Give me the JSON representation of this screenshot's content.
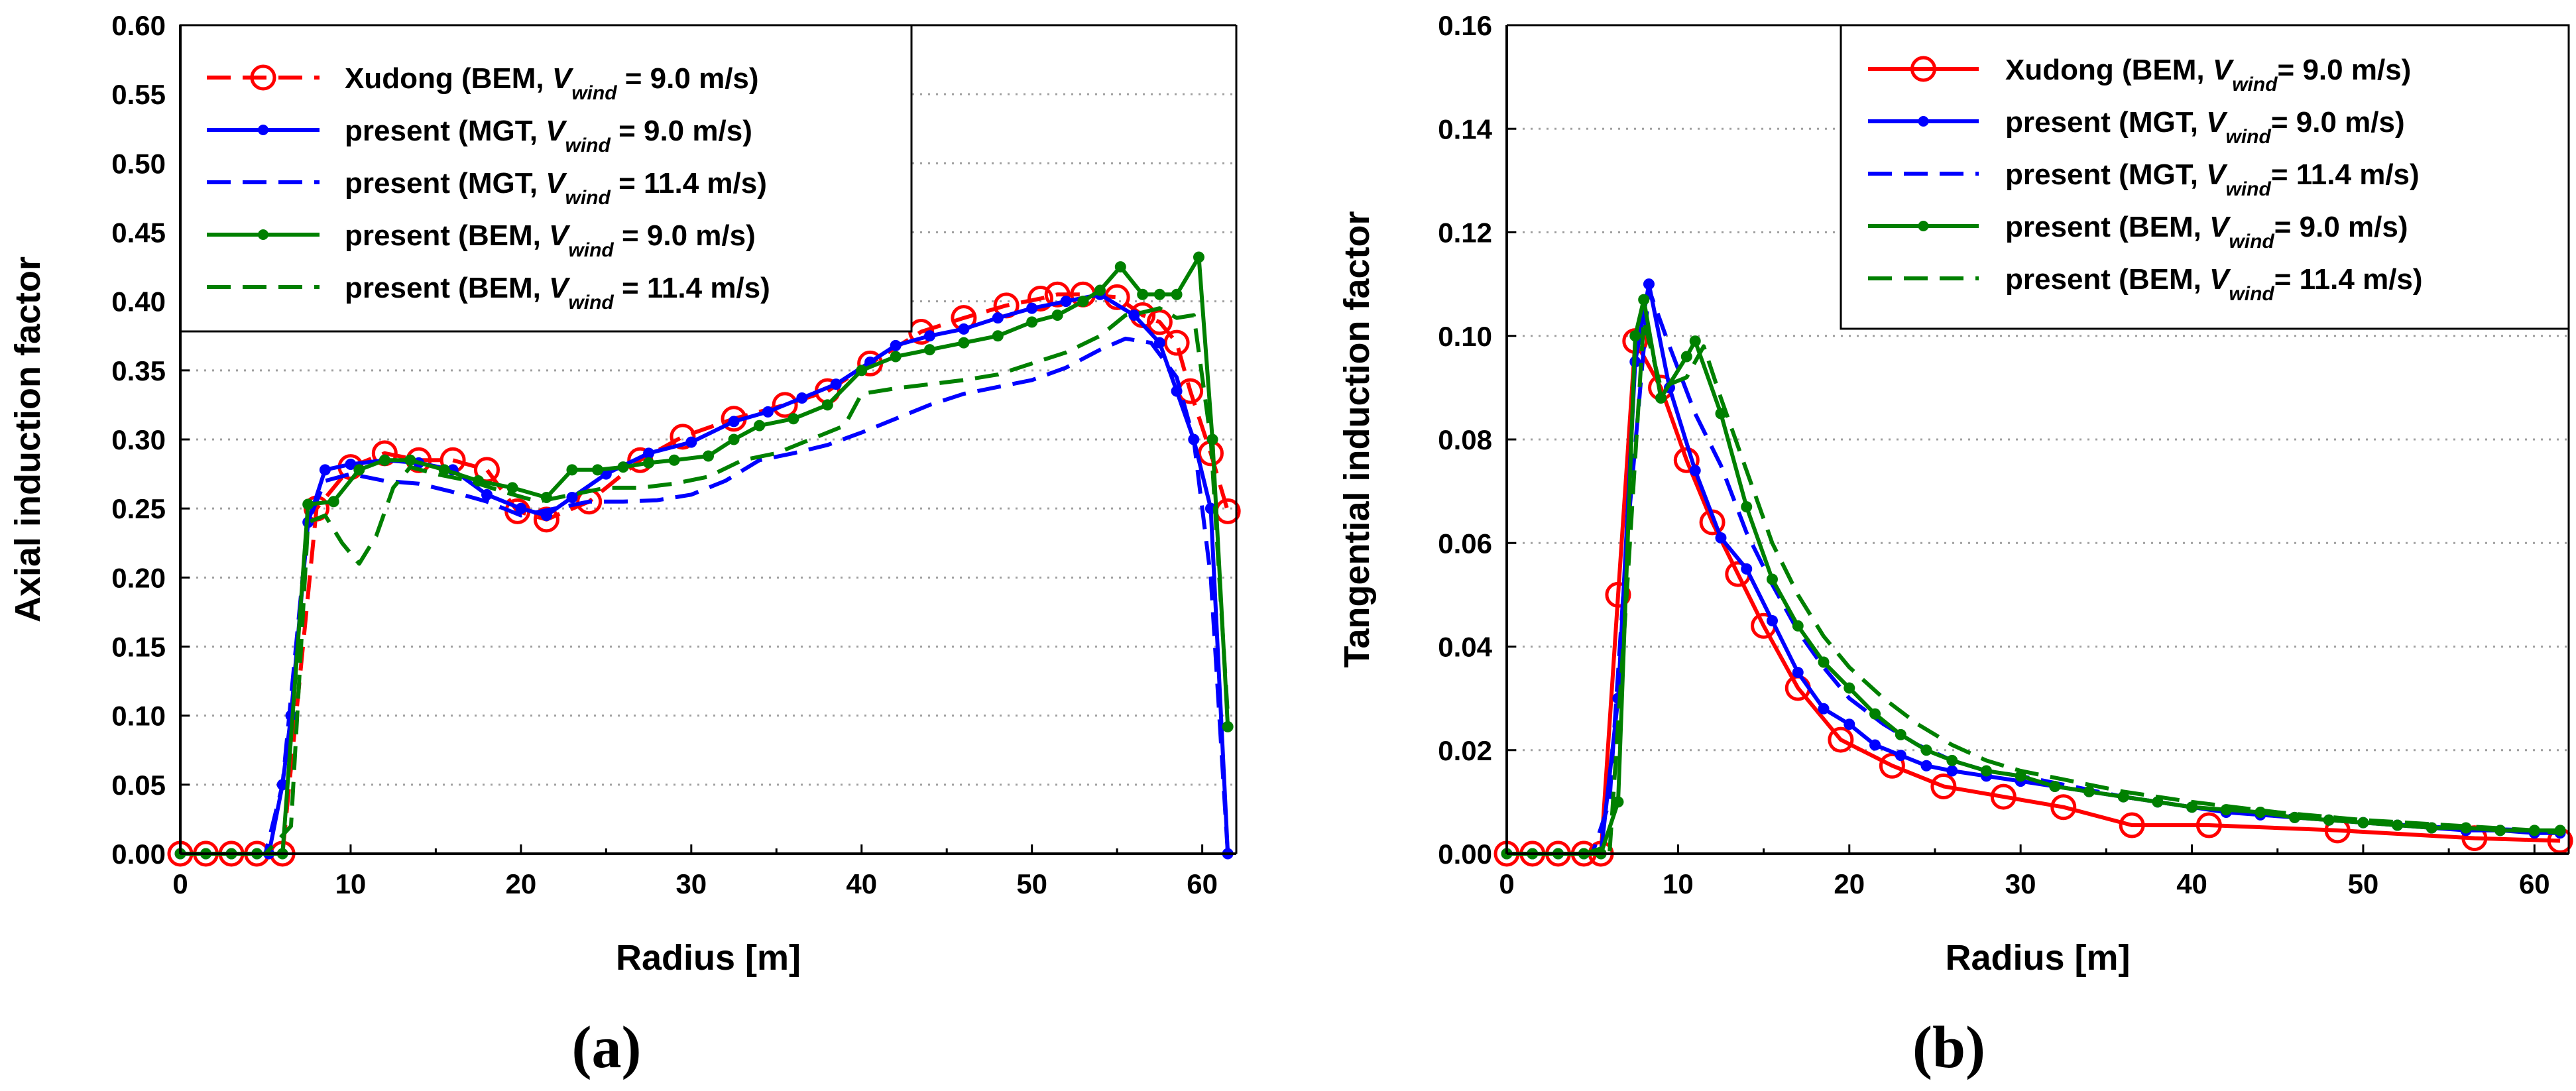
{
  "chart_data": [
    {
      "type": "line",
      "panel_label": "(a)",
      "xlabel": "Radius [m]",
      "ylabel": "Axial induction factor",
      "xlim": [
        0,
        62
      ],
      "ylim": [
        0,
        0.6
      ],
      "xticks": [
        "0",
        "10",
        "20",
        "30",
        "40",
        "50",
        "60"
      ],
      "yticks": [
        "0.00",
        "0.05",
        "0.10",
        "0.15",
        "0.20",
        "0.25",
        "0.30",
        "0.35",
        "0.40",
        "0.45",
        "0.50",
        "0.55",
        "0.60"
      ],
      "grid": "horizontal dotted",
      "legend_position": "top-left",
      "series": [
        {
          "name": "Xudong (BEM, V_wind = 9.0 m/s)",
          "legend_main": "Xudong (BEM, ",
          "legend_v": "V",
          "legend_sub": "wind",
          "legend_tail": " = 9.0 m/s)",
          "color": "#ff0000",
          "style": "dash",
          "marker": "open-circle",
          "x": [
            0,
            1.5,
            3,
            4.5,
            6,
            8,
            10,
            12,
            14,
            16,
            18,
            19.8,
            21.5,
            24,
            27,
            29.5,
            32.5,
            35.5,
            38,
            40.5,
            43.5,
            46,
            48.5,
            50.5,
            51.5,
            53,
            55,
            56.5,
            57.5,
            58.5,
            59.3,
            60.5,
            61.5
          ],
          "y": [
            0,
            0,
            0,
            0,
            0,
            0.25,
            0.28,
            0.29,
            0.285,
            0.285,
            0.278,
            0.248,
            0.242,
            0.255,
            0.285,
            0.302,
            0.315,
            0.325,
            0.335,
            0.355,
            0.378,
            0.388,
            0.397,
            0.402,
            0.405,
            0.405,
            0.403,
            0.39,
            0.385,
            0.37,
            0.335,
            0.29,
            0.248
          ]
        },
        {
          "name": "present (MGT, V_wind = 9.0 m/s)",
          "legend_main": "present (MGT, ",
          "legend_v": "V",
          "legend_sub": "wind",
          "legend_tail": " = 9.0 m/s)",
          "color": "#0000ff",
          "style": "solid",
          "marker": "dot",
          "x": [
            0,
            1.5,
            3,
            4.5,
            5.2,
            6,
            6.5,
            7.5,
            8.5,
            10,
            12,
            14,
            16,
            18,
            20,
            21.5,
            23,
            25,
            27.5,
            30,
            32.5,
            34.5,
            36.5,
            38.5,
            40.5,
            42,
            44,
            46,
            48,
            50,
            52,
            54,
            56,
            57.5,
            58.5,
            59.5,
            60.5,
            61.5
          ],
          "y": [
            0,
            0,
            0,
            0,
            0,
            0.05,
            0.1,
            0.24,
            0.278,
            0.282,
            0.285,
            0.283,
            0.278,
            0.26,
            0.25,
            0.245,
            0.258,
            0.275,
            0.29,
            0.298,
            0.313,
            0.32,
            0.33,
            0.34,
            0.356,
            0.368,
            0.375,
            0.38,
            0.388,
            0.395,
            0.4,
            0.405,
            0.39,
            0.37,
            0.335,
            0.3,
            0.25,
            0
          ]
        },
        {
          "name": "present (MGT, V_wind = 11.4 m/s)",
          "legend_main": "present (MGT, ",
          "legend_v": "V",
          "legend_sub": "wind",
          "legend_tail": " = 11.4 m/s)",
          "color": "#0000ff",
          "style": "dash",
          "marker": "none",
          "x": [
            0,
            5,
            6,
            7.5,
            8.5,
            10,
            12,
            14,
            16,
            18,
            20,
            22,
            24,
            26,
            28,
            30,
            32,
            34,
            36,
            38,
            40,
            42,
            44,
            46,
            48,
            50,
            52,
            54,
            55.5,
            57,
            58.5,
            59.5,
            60.5,
            61.5
          ],
          "y": [
            0,
            0,
            0.05,
            0.24,
            0.27,
            0.275,
            0.27,
            0.268,
            0.262,
            0.255,
            0.245,
            0.25,
            0.255,
            0.255,
            0.256,
            0.26,
            0.27,
            0.285,
            0.29,
            0.296,
            0.305,
            0.315,
            0.325,
            0.333,
            0.338,
            0.343,
            0.352,
            0.365,
            0.373,
            0.37,
            0.345,
            0.3,
            0.2,
            0
          ]
        },
        {
          "name": "present (BEM, V_wind = 9.0 m/s)",
          "legend_main": "present (BEM, ",
          "legend_v": "V",
          "legend_sub": "wind",
          "legend_tail": " = 9.0 m/s)",
          "color": "#008000",
          "style": "solid",
          "marker": "dot",
          "x": [
            0,
            1.5,
            3,
            4.5,
            6,
            7.5,
            9,
            10.5,
            12,
            13.5,
            15.5,
            17.5,
            19.5,
            21.5,
            23,
            24.5,
            26,
            27.5,
            29,
            31,
            32.5,
            34,
            36,
            38,
            40,
            42,
            44,
            46,
            48,
            50,
            51.5,
            53,
            54,
            55.2,
            56.5,
            57.5,
            58.5,
            59.8,
            60.6,
            61.5
          ],
          "y": [
            0,
            0,
            0,
            0,
            0,
            0.253,
            0.255,
            0.278,
            0.285,
            0.285,
            0.278,
            0.27,
            0.265,
            0.258,
            0.278,
            0.278,
            0.28,
            0.283,
            0.285,
            0.288,
            0.3,
            0.31,
            0.315,
            0.325,
            0.35,
            0.36,
            0.365,
            0.37,
            0.375,
            0.385,
            0.39,
            0.4,
            0.408,
            0.425,
            0.405,
            0.405,
            0.405,
            0.432,
            0.3,
            0.092
          ]
        },
        {
          "name": "present (BEM, V_wind = 11.4 m/s)",
          "legend_main": "present (BEM, ",
          "legend_v": "V",
          "legend_sub": "wind",
          "legend_tail": " = 11.4 m/s)",
          "color": "#008000",
          "style": "dash",
          "marker": "none",
          "x": [
            0,
            5,
            6.5,
            7.5,
            8.5,
            9.5,
            10.5,
            11.5,
            12.5,
            13.5,
            15,
            17,
            19,
            21,
            23,
            25,
            27,
            29,
            31,
            33,
            35,
            37,
            39,
            40,
            42,
            44,
            46,
            48,
            50,
            52,
            54,
            55.5,
            56.5,
            57.5,
            58.5,
            59.5,
            60.5,
            61.5
          ],
          "y": [
            0,
            0,
            0.02,
            0.24,
            0.245,
            0.225,
            0.21,
            0.23,
            0.265,
            0.28,
            0.275,
            0.27,
            0.262,
            0.255,
            0.26,
            0.265,
            0.265,
            0.268,
            0.273,
            0.285,
            0.29,
            0.3,
            0.31,
            0.333,
            0.337,
            0.34,
            0.343,
            0.347,
            0.355,
            0.363,
            0.375,
            0.39,
            0.392,
            0.395,
            0.388,
            0.39,
            0.3,
            0.1
          ]
        }
      ]
    },
    {
      "type": "line",
      "panel_label": "(b)",
      "xlabel": "Radius [m]",
      "ylabel": "Tangential induction factor",
      "xlim": [
        0,
        62
      ],
      "ylim": [
        0,
        0.16
      ],
      "xticks": [
        "0",
        "10",
        "20",
        "30",
        "40",
        "50",
        "60"
      ],
      "yticks": [
        "0.00",
        "0.02",
        "0.04",
        "0.06",
        "0.08",
        "0.10",
        "0.12",
        "0.14",
        "0.16"
      ],
      "grid": "horizontal dotted",
      "legend_position": "top-right",
      "series": [
        {
          "name": "Xudong (BEM, V_wind= 9.0 m/s)",
          "legend_main": "Xudong (BEM, ",
          "legend_v": "V",
          "legend_sub": "wind",
          "legend_tail": "= 9.0 m/s)",
          "color": "#ff0000",
          "style": "solid",
          "marker": "open-circle",
          "x": [
            0,
            1.5,
            3,
            4.5,
            5.5,
            6.5,
            7.5,
            9,
            10.5,
            12,
            13.5,
            15,
            17,
            19.5,
            22.5,
            25.5,
            29,
            32.5,
            36.5,
            41,
            48.5,
            56.5,
            61.5
          ],
          "y": [
            0,
            0,
            0,
            0,
            0,
            0.05,
            0.099,
            0.09,
            0.076,
            0.064,
            0.054,
            0.044,
            0.032,
            0.022,
            0.017,
            0.013,
            0.011,
            0.009,
            0.0055,
            0.0055,
            0.0045,
            0.003,
            0.0025
          ]
        },
        {
          "name": "present (MGT, V_wind= 9.0 m/s)",
          "legend_main": "present (MGT, ",
          "legend_v": "V",
          "legend_sub": "wind",
          "legend_tail": "= 9.0 m/s)",
          "color": "#0000ff",
          "style": "solid",
          "marker": "dot",
          "x": [
            0,
            1.5,
            3,
            4.5,
            5.5,
            6.5,
            7.5,
            8.3,
            9.5,
            11,
            12.5,
            14,
            15.5,
            17,
            18.5,
            20,
            21.5,
            23,
            24.5,
            26,
            28,
            30,
            32,
            34,
            36,
            38,
            40,
            42,
            44,
            46,
            48,
            50,
            52,
            54,
            56,
            58,
            60,
            61.5
          ],
          "y": [
            0,
            0,
            0,
            0,
            0,
            0.03,
            0.095,
            0.11,
            0.09,
            0.074,
            0.061,
            0.055,
            0.045,
            0.035,
            0.028,
            0.025,
            0.021,
            0.019,
            0.017,
            0.016,
            0.015,
            0.014,
            0.013,
            0.012,
            0.011,
            0.01,
            0.009,
            0.008,
            0.0075,
            0.007,
            0.0065,
            0.006,
            0.0055,
            0.005,
            0.0045,
            0.0045,
            0.004,
            0.004
          ]
        },
        {
          "name": "present (MGT, V_wind= 11.4 m/s)",
          "legend_main": "present (MGT, ",
          "legend_v": "V",
          "legend_sub": "wind",
          "legend_tail": "= 11.4 m/s)",
          "color": "#0000ff",
          "style": "dash",
          "marker": "none",
          "x": [
            0,
            5,
            6,
            7,
            8.3,
            9.5,
            11,
            12.5,
            14,
            15.5,
            17,
            18.5,
            20,
            22,
            24,
            26,
            28,
            30,
            33,
            36,
            40,
            45,
            50,
            55,
            60,
            61.5
          ],
          "y": [
            0,
            0,
            0.01,
            0.06,
            0.109,
            0.098,
            0.085,
            0.075,
            0.062,
            0.052,
            0.043,
            0.036,
            0.03,
            0.025,
            0.021,
            0.018,
            0.016,
            0.015,
            0.013,
            0.011,
            0.009,
            0.0075,
            0.006,
            0.005,
            0.0045,
            0.004
          ]
        },
        {
          "name": "present (BEM, V_wind= 9.0 m/s)",
          "legend_main": "present (BEM, ",
          "legend_v": "V",
          "legend_sub": "wind",
          "legend_tail": "= 9.0 m/s)",
          "color": "#008000",
          "style": "solid",
          "marker": "dot",
          "x": [
            0,
            1.5,
            3,
            4.5,
            5.5,
            6.5,
            7.5,
            8,
            9,
            10.5,
            11,
            12.5,
            14,
            15.5,
            17,
            18.5,
            20,
            21.5,
            23,
            24.5,
            26,
            28,
            30,
            32,
            34,
            36,
            38,
            40,
            42,
            44,
            46,
            48,
            50,
            52,
            54,
            56,
            58,
            60,
            61.5
          ],
          "y": [
            0,
            0,
            0,
            0,
            0,
            0.01,
            0.1,
            0.107,
            0.088,
            0.096,
            0.099,
            0.085,
            0.067,
            0.053,
            0.044,
            0.037,
            0.032,
            0.027,
            0.023,
            0.02,
            0.018,
            0.016,
            0.015,
            0.013,
            0.012,
            0.011,
            0.01,
            0.009,
            0.0085,
            0.008,
            0.007,
            0.0065,
            0.006,
            0.0055,
            0.005,
            0.005,
            0.0045,
            0.0045,
            0.0045
          ]
        },
        {
          "name": "present (BEM, V_wind= 11.4 m/s)",
          "legend_main": "present (BEM, ",
          "legend_v": "V",
          "legend_sub": "wind",
          "legend_tail": "= 11.4 m/s)",
          "color": "#008000",
          "style": "dash",
          "marker": "none",
          "x": [
            0,
            4.5,
            5.5,
            6,
            7,
            8,
            9,
            10.5,
            11.5,
            12.5,
            14,
            15.5,
            17,
            18.5,
            20,
            22,
            24,
            26,
            28,
            30,
            33,
            36,
            40,
            45,
            50,
            55,
            60,
            61.5
          ],
          "y": [
            0,
            0,
            0.001,
            0,
            0.05,
            0.103,
            0.09,
            0.092,
            0.098,
            0.088,
            0.074,
            0.06,
            0.05,
            0.042,
            0.036,
            0.03,
            0.025,
            0.021,
            0.018,
            0.016,
            0.014,
            0.012,
            0.01,
            0.008,
            0.0065,
            0.0055,
            0.0045,
            0.004
          ]
        }
      ]
    }
  ]
}
